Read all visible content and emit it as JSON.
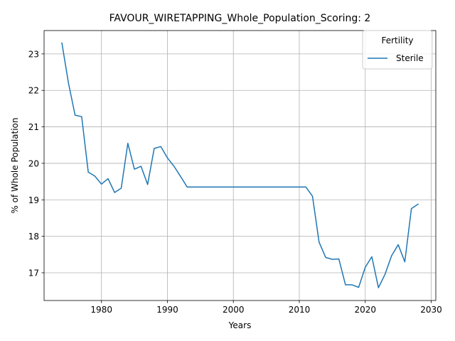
{
  "chart_data": {
    "type": "line",
    "title": "FAVOUR_WIRETAPPING_Whole_Population_Scoring: 2",
    "xlabel": "Years",
    "ylabel": "% of Whole Population",
    "xlim": [
      1971.3,
      2030.7
    ],
    "ylim": [
      16.24,
      23.64
    ],
    "xticks": [
      1980,
      1990,
      2000,
      2010,
      2020,
      2030
    ],
    "yticks": [
      17,
      18,
      19,
      20,
      21,
      22,
      23
    ],
    "grid": true,
    "legend": {
      "title": "Fertility",
      "placement": "top-right"
    },
    "series": [
      {
        "name": "Sterile",
        "color": "#1f77b4",
        "x": [
          1974,
          1975,
          1976,
          1977,
          1978,
          1979,
          1980,
          1981,
          1982,
          1983,
          1984,
          1985,
          1986,
          1987,
          1988,
          1989,
          1990,
          1991,
          1992,
          1993,
          1994,
          1996,
          1998,
          2000,
          2002,
          2004,
          2006,
          2008,
          2010,
          2011,
          2012,
          2013,
          2014,
          2015,
          2016,
          2017,
          2018,
          2019,
          2020,
          2021,
          2022,
          2023,
          2024,
          2025,
          2026,
          2027,
          2028
        ],
        "y": [
          23.3,
          22.2,
          21.32,
          21.28,
          19.76,
          19.65,
          19.43,
          19.58,
          19.2,
          19.32,
          20.55,
          19.84,
          19.92,
          19.42,
          20.41,
          20.46,
          20.15,
          19.92,
          19.64,
          19.35,
          19.35,
          19.35,
          19.35,
          19.35,
          19.35,
          19.35,
          19.35,
          19.35,
          19.35,
          19.35,
          19.1,
          17.84,
          17.42,
          17.37,
          17.38,
          16.67,
          16.67,
          16.6,
          17.15,
          17.44,
          16.59,
          16.96,
          17.47,
          17.77,
          17.3,
          18.76,
          18.88
        ]
      }
    ]
  }
}
